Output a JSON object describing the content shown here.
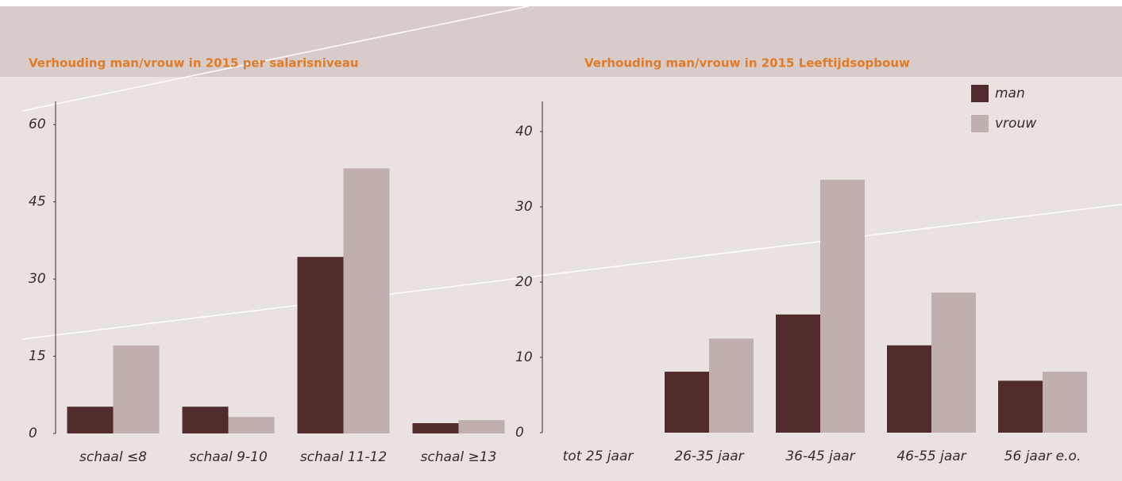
{
  "chart_data": [
    {
      "type": "bar",
      "title": "Verhouding man/vrouw in 2015 per salarisniveau",
      "categories": [
        "schaal ≤8",
        "schaal 9-10",
        "schaal 11-12",
        "schaal ≥13"
      ],
      "series": [
        {
          "color": "#522c2c",
          "values": [
            5.2,
            5.2,
            34.3,
            2.0
          ]
        },
        {
          "color": "#c0b0ad",
          "values": [
            17.1,
            3.2,
            51.5,
            2.6
          ]
        }
      ],
      "ylim": [
        0,
        64.5
      ],
      "yticks": [
        0,
        15,
        30,
        45,
        60
      ]
    },
    {
      "type": "bar",
      "title": "Verhouding man/vrouw in 2015 Leeftijdsopbouw",
      "categories": [
        "tot 25 jaar",
        "26-35 jaar",
        "36-45 jaar",
        "46-55 jaar",
        "56 jaar e.o."
      ],
      "series": [
        {
          "name": "man",
          "color": "#522c2c",
          "values": [
            0,
            8.1,
            15.7,
            11.6,
            6.9
          ]
        },
        {
          "name": "vrouw",
          "color": "#c0b0ad",
          "values": [
            0,
            12.5,
            33.6,
            18.6,
            8.1
          ]
        }
      ],
      "ylim": [
        0,
        44
      ],
      "yticks": [
        0,
        10,
        20,
        30,
        40
      ],
      "legend": "top-right"
    }
  ]
}
